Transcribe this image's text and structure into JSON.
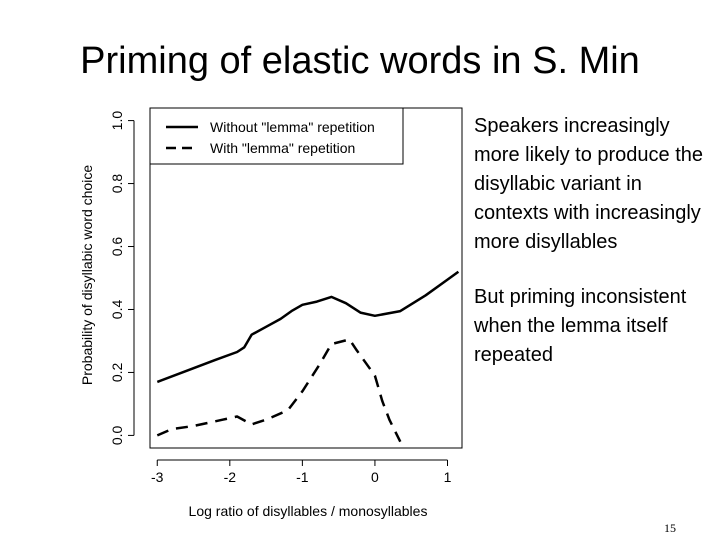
{
  "slide": {
    "title": "Priming of elastic words in S. Min",
    "bullets": [
      "Speakers increasingly more likely to produce the disyllabic variant in contexts with increasingly more disyllables",
      "But priming inconsistent when the lemma itself repeated"
    ],
    "slide_number": "15"
  },
  "chart_data": {
    "type": "line",
    "title": "",
    "xlabel": "Log ratio of disyllables / monosyllables",
    "ylabel": "Probability of disyllabic word choice",
    "xlim": [
      -3.1,
      1.2
    ],
    "ylim": [
      -0.04,
      1.04
    ],
    "x_ticks": [
      -3,
      -2,
      -1,
      0,
      1
    ],
    "y_ticks": [
      0.0,
      0.2,
      0.4,
      0.6,
      0.8,
      1.0
    ],
    "x_tick_labels": [
      "-3",
      "-2",
      "-1",
      "0",
      "1"
    ],
    "y_tick_labels": [
      "0.0",
      "0.2",
      "0.4",
      "0.6",
      "0.8",
      "1.0"
    ],
    "grid": false,
    "legend_position": "top-left",
    "series": [
      {
        "name": "Without \"lemma\" repetition",
        "style": "solid",
        "color": "#000000",
        "x": [
          -3.0,
          -2.6,
          -2.2,
          -1.9,
          -1.8,
          -1.7,
          -1.5,
          -1.3,
          -1.15,
          -1.0,
          -0.8,
          -0.6,
          -0.4,
          -0.2,
          0.0,
          0.35,
          0.7,
          1.0,
          1.15
        ],
        "y": [
          0.17,
          0.205,
          0.24,
          0.265,
          0.28,
          0.32,
          0.345,
          0.37,
          0.395,
          0.415,
          0.425,
          0.44,
          0.42,
          0.39,
          0.38,
          0.395,
          0.445,
          0.495,
          0.52
        ]
      },
      {
        "name": "With \"lemma\" repetition",
        "style": "dashed",
        "color": "#000000",
        "x": [
          -3.0,
          -2.8,
          -2.5,
          -2.1,
          -1.9,
          -1.7,
          -1.5,
          -1.2,
          -1.0,
          -0.75,
          -0.6,
          -0.35,
          -0.25,
          0.0,
          0.1,
          0.2,
          0.35
        ],
        "y": [
          0.0,
          0.02,
          0.03,
          0.05,
          0.06,
          0.035,
          0.05,
          0.08,
          0.14,
          0.23,
          0.29,
          0.305,
          0.27,
          0.19,
          0.11,
          0.05,
          -0.02
        ]
      }
    ]
  }
}
